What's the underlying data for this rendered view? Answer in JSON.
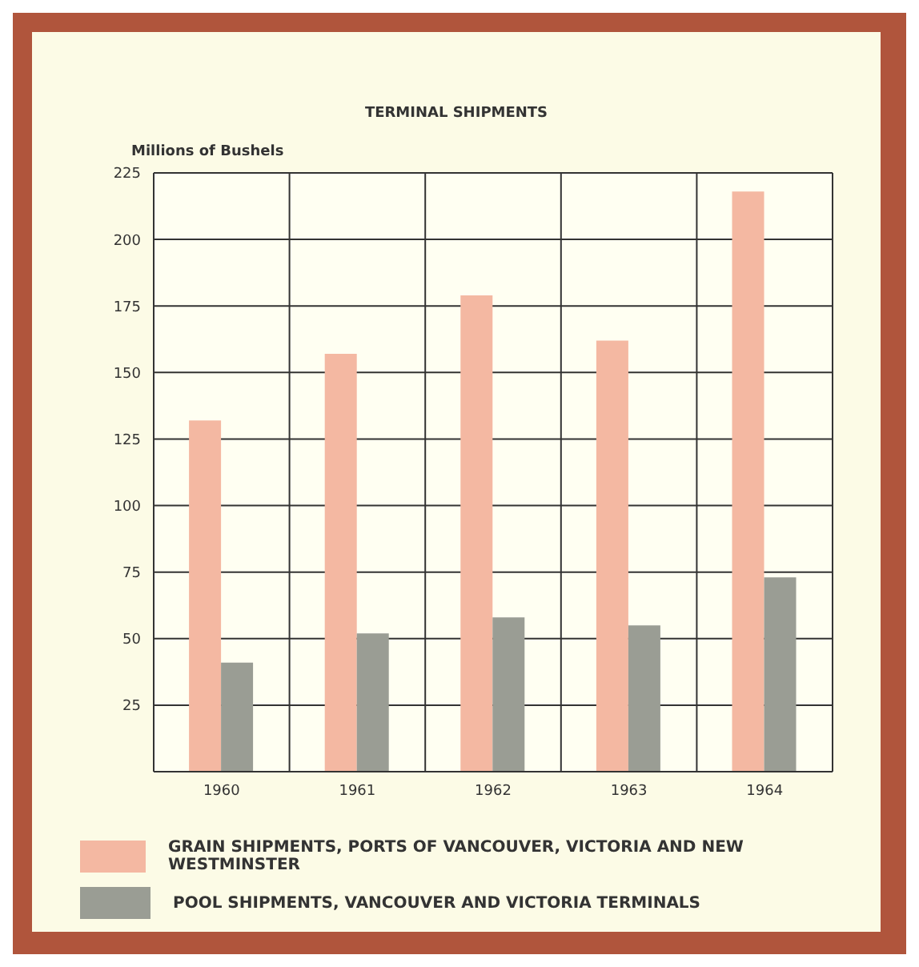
{
  "chart_data": {
    "type": "bar",
    "title": "TERMINAL SHIPMENTS",
    "ylabel": "Millions of Bushels",
    "categories": [
      "1960",
      "1961",
      "1962",
      "1963",
      "1964"
    ],
    "series": [
      {
        "name": "GRAIN SHIPMENTS, PORTS OF VANCOUVER, VICTORIA AND NEW WESTMINSTER",
        "color": "#f4b8a2",
        "values": [
          132,
          157,
          179,
          162,
          218
        ]
      },
      {
        "name": "POOL SHIPMENTS, VANCOUVER AND VICTORIA TERMINALS",
        "color": "#9a9d94",
        "values": [
          41,
          52,
          58,
          55,
          73
        ]
      }
    ],
    "ylim": [
      0,
      225
    ],
    "yticks": [
      25,
      50,
      75,
      100,
      125,
      150,
      175,
      200,
      225
    ],
    "grid": true,
    "legend": "bottom"
  }
}
